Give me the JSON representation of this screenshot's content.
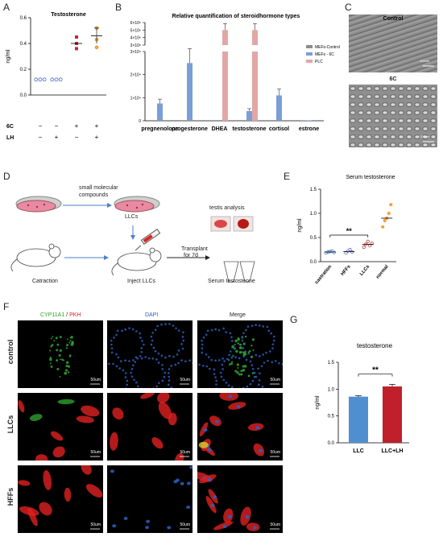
{
  "panels": {
    "A": "A",
    "B": "B",
    "C": "C",
    "D": "D",
    "E": "E",
    "F": "F",
    "G": "G"
  },
  "chart_data": [
    {
      "panel": "A",
      "type": "scatter",
      "title": "Testosterone",
      "ylabel": "ng/ml",
      "ylim": [
        0,
        0.6
      ],
      "yticks": [
        "0.0",
        "0.2",
        "0.4",
        "0.6"
      ],
      "groups": [
        {
          "row_6C": "−",
          "row_LH": "−",
          "color": "#4a6fc0",
          "points": [
            0.12,
            0.12,
            0.12
          ]
        },
        {
          "row_6C": "−",
          "row_LH": "+",
          "color": "#4a6fc0",
          "points": [
            0.12,
            0.12,
            0.12
          ]
        },
        {
          "row_6C": "+",
          "row_LH": "−",
          "color": "#c0283c",
          "points": [
            0.36,
            0.4,
            0.45
          ],
          "mean": 0.4
        },
        {
          "row_6C": "+",
          "row_LH": "+",
          "color": "#f0a040",
          "points": [
            0.37,
            0.43,
            0.52
          ],
          "mean": 0.46,
          "err": [
            0.4,
            0.52
          ]
        }
      ],
      "row_labels": [
        "6C",
        "LH"
      ]
    },
    {
      "panel": "B",
      "type": "bar",
      "title": "Relative quantification of steroidhormone types",
      "categories": [
        "pregnenolone",
        "progesterone",
        "DHEA",
        "testosterone",
        "cortisol",
        "estrone"
      ],
      "yticks_lower": [
        "0",
        "1×10⁴",
        "2×10⁴",
        "3×10⁴"
      ],
      "yticks_upper": [
        "3×10⁶",
        "4×10⁶",
        "5×10⁶",
        "6×10⁶"
      ],
      "series": [
        {
          "name": "MEFs-Control",
          "color": "#8c8c8c",
          "values": [
            0,
            0,
            0,
            0,
            0,
            100
          ]
        },
        {
          "name": "MEFs - 6C",
          "color": "#7a9fd6",
          "values": [
            7500,
            25000,
            0,
            4200,
            11000,
            200
          ]
        },
        {
          "name": "PLC",
          "color": "#e3a6a6",
          "values": [
            0,
            0,
            5000000,
            5000000,
            0,
            0
          ]
        }
      ]
    },
    {
      "panel": "E",
      "type": "scatter",
      "title": "Serum testosterone",
      "ylabel": "ng/ml",
      "ylim": [
        0,
        1.5
      ],
      "yticks": [
        "0.0",
        "0.5",
        "1.0",
        "1.5"
      ],
      "categories": [
        "castration",
        "HFFs",
        "LLCs",
        "normal"
      ],
      "groups": [
        {
          "name": "castration",
          "color": "#4a78c8",
          "points": [
            0.18,
            0.2,
            0.21,
            0.22,
            0.19
          ],
          "mean": 0.2
        },
        {
          "name": "HFFs",
          "color": "#6a6ab8",
          "points": [
            0.18,
            0.22,
            0.25,
            0.2
          ],
          "mean": 0.21
        },
        {
          "name": "LLCs",
          "color": "#c0383c",
          "points": [
            0.3,
            0.36,
            0.42,
            0.33,
            0.38
          ],
          "mean": 0.36
        },
        {
          "name": "normal",
          "color": "#f0a040",
          "points": [
            0.72,
            0.85,
            0.9,
            1.0,
            1.18
          ],
          "mean": 0.9
        }
      ],
      "significance": "**"
    },
    {
      "panel": "G",
      "type": "bar",
      "title": "testosterone",
      "ylabel": "ng/ml",
      "ylim": [
        0,
        1.5
      ],
      "yticks": [
        "0.0",
        "0.5",
        "1.0",
        "1.5"
      ],
      "categories": [
        "LLC",
        "LLC+LH"
      ],
      "values": [
        0.86,
        1.05
      ],
      "errors": [
        0.02,
        0.04
      ],
      "colors": [
        "#4f8fd0",
        "#c0202c"
      ],
      "significance": "**"
    }
  ],
  "panel_c": {
    "top_label": "Control",
    "bottom_label": "6C",
    "scale_top": "100um",
    "scale_bottom": "100um"
  },
  "panel_d": {
    "compounds": "small molecular",
    "compounds2": "compounds",
    "llcs": "LLCs",
    "testis": "testis analysis",
    "transplant": "Transplant",
    "transplant2": "for 7d",
    "castration": "Catraction",
    "inject": "Inject LLCs",
    "serum": "Serum testosteone"
  },
  "panel_f": {
    "col1_a": "CYP11A1",
    "col1_sep": " / ",
    "col1_b": "PKH",
    "col2": "DAPI",
    "col3": "Merge",
    "rows": [
      "control",
      "LLCs",
      "HFFs"
    ],
    "scale": "50um",
    "colors": {
      "green": "#2ca02c",
      "red": "#e02020",
      "blue": "#2a5fc0"
    }
  }
}
